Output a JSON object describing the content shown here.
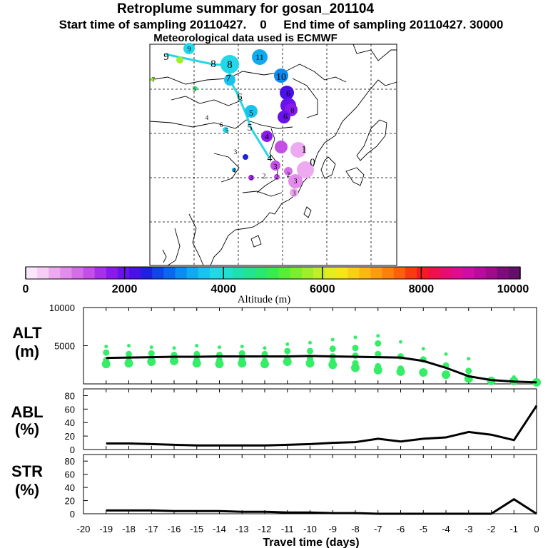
{
  "header": {
    "title": "Retroplume summary for gosan_201104",
    "sampling": "Start time of sampling 20110427.    0     End time of sampling 20110427. 30000",
    "met": "Meteorological data used is ECMWF"
  },
  "colorbar": {
    "ticks": [
      "0",
      "2000",
      "4000",
      "6000",
      "8000",
      "10000"
    ],
    "label": "Altitude  (m)",
    "colors": [
      "#fce6fc",
      "#f6cdf6",
      "#eeaaf0",
      "#e38ceb",
      "#d56ce8",
      "#c44ee6",
      "#a830e8",
      "#8a1aeb",
      "#6a12ee",
      "#4a10e8",
      "#2020e0",
      "#1046e8",
      "#0a68ee",
      "#0a8cf0",
      "#10aaf0",
      "#18c4ee",
      "#22d8e8",
      "#20e0d0",
      "#20e0b0",
      "#22e490",
      "#28e870",
      "#38ec50",
      "#58ee38",
      "#7cee30",
      "#9eee2a",
      "#c2ee26",
      "#e2ec20",
      "#f6e618",
      "#fad014",
      "#fcb810",
      "#fc9c0e",
      "#fc800c",
      "#fc600e",
      "#fa3a10",
      "#f81a20",
      "#f0104a",
      "#e80c70",
      "#e00c90",
      "#d00ca6",
      "#b80a9e",
      "#9e0c8e",
      "#7e0c7c",
      "#64106a"
    ]
  },
  "map": {
    "top_labels": [
      {
        "text": "9",
        "color": "#22d8e8"
      },
      {
        "text": "11",
        "color": "#22d8e8"
      }
    ],
    "plume_labels": [
      "9",
      "8",
      "8",
      "7",
      "6",
      "5",
      "5",
      "4",
      "4",
      "3",
      "2",
      "1",
      "0",
      "10",
      "6",
      "8",
      "6",
      "11",
      "9",
      "7",
      "5",
      "4",
      "6",
      "5",
      "3",
      "4",
      "3",
      "2",
      "3",
      "2",
      "3"
    ]
  },
  "chart_data": [
    {
      "type": "line",
      "panel": "ALT",
      "title": "ALT",
      "ylabel": "(m)",
      "ylim": [
        0,
        10000
      ],
      "yticks": [
        10000,
        5000
      ],
      "x": [
        -19,
        -18,
        -17,
        -16,
        -15,
        -14,
        -13,
        -12,
        -11,
        -10,
        -9,
        -8,
        -7,
        -6,
        -5,
        -4,
        -3,
        -2,
        -1,
        0
      ],
      "series": [
        {
          "name": "mean altitude",
          "values": [
            3400,
            3450,
            3500,
            3550,
            3550,
            3600,
            3600,
            3600,
            3600,
            3650,
            3600,
            3550,
            3500,
            3450,
            3000,
            2100,
            1000,
            500,
            300,
            200
          ]
        }
      ],
      "clusters": [
        {
          "x": -19,
          "y": [
            4900,
            4100,
            3100,
            2600
          ]
        },
        {
          "x": -18,
          "y": [
            5000,
            3900,
            3000,
            2700
          ]
        },
        {
          "x": -17,
          "y": [
            4800,
            4000,
            3300,
            2900
          ]
        },
        {
          "x": -16,
          "y": [
            4700,
            3800,
            3000
          ]
        },
        {
          "x": -15,
          "y": [
            5000,
            3900,
            3100,
            2700
          ]
        },
        {
          "x": -14,
          "y": [
            4800,
            3800,
            3100,
            2600
          ]
        },
        {
          "x": -13,
          "y": [
            4900,
            4000,
            3200,
            2700
          ]
        },
        {
          "x": -12,
          "y": [
            4700,
            3900,
            3000,
            2600
          ]
        },
        {
          "x": -11,
          "y": [
            5200,
            4300,
            3400,
            2900
          ]
        },
        {
          "x": -10,
          "y": [
            5400,
            4300,
            3300,
            2700
          ]
        },
        {
          "x": -9,
          "y": [
            5800,
            4600,
            3600,
            2900,
            2500
          ]
        },
        {
          "x": -8,
          "y": [
            6100,
            4700,
            3700,
            2700,
            2100
          ]
        },
        {
          "x": -7,
          "y": [
            6300,
            5300,
            3900,
            2300,
            1800
          ]
        },
        {
          "x": -6,
          "y": [
            5500,
            3600,
            2000,
            1600
          ]
        },
        {
          "x": -5,
          "y": [
            4600,
            3200,
            1500
          ]
        },
        {
          "x": -4,
          "y": [
            3900,
            2400,
            1200
          ]
        },
        {
          "x": -3,
          "y": [
            3300,
            1700,
            700
          ]
        },
        {
          "x": -2,
          "y": [
            700,
            400
          ]
        },
        {
          "x": -1,
          "y": [
            900,
            400
          ]
        },
        {
          "x": 0,
          "y": [
            200
          ]
        }
      ]
    },
    {
      "type": "line",
      "panel": "ABL",
      "title": "ABL",
      "ylabel": "(%)",
      "ylim": [
        0,
        90
      ],
      "yticks": [
        0,
        20,
        40,
        60,
        80
      ],
      "x": [
        -19,
        -18,
        -17,
        -16,
        -15,
        -14,
        -13,
        -12,
        -11,
        -10,
        -9,
        -8,
        -7,
        -6,
        -5,
        -4,
        -3,
        -2,
        -1,
        0
      ],
      "series": [
        {
          "name": "ABL",
          "values": [
            9,
            9,
            8,
            7,
            6,
            6,
            6,
            6,
            7,
            8,
            10,
            11,
            16,
            12,
            16,
            18,
            26,
            22,
            14,
            65
          ]
        }
      ]
    },
    {
      "type": "line",
      "panel": "STR",
      "title": "STR",
      "ylabel": "(%)",
      "ylim": [
        0,
        90
      ],
      "yticks": [
        0,
        20,
        40,
        60,
        80
      ],
      "x": [
        -19,
        -18,
        -17,
        -16,
        -15,
        -14,
        -13,
        -12,
        -11,
        -10,
        -9,
        -8,
        -7,
        -6,
        -5,
        -4,
        -3,
        -2,
        -1,
        0
      ],
      "series": [
        {
          "name": "STR",
          "values": [
            5,
            5,
            5,
            4,
            4,
            4,
            3,
            3,
            2,
            2,
            1,
            1,
            0,
            0,
            0,
            0,
            0,
            0,
            22,
            0
          ]
        }
      ]
    }
  ],
  "xaxis": {
    "ticks": [
      "-20",
      "-19",
      "-18",
      "-17",
      "-16",
      "-15",
      "-14",
      "-13",
      "-12",
      "-11",
      "-10",
      "-9",
      "-8",
      "-7",
      "-6",
      "-5",
      "-4",
      "-3",
      "-2",
      "-1",
      "0"
    ],
    "label": "Travel time (days)"
  }
}
